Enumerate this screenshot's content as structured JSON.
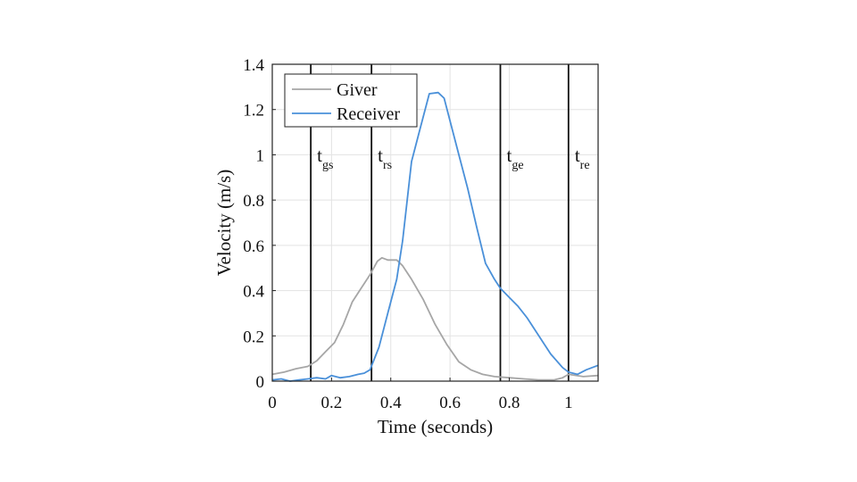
{
  "chart_data": {
    "type": "line",
    "title": "",
    "xlabel": "Time (seconds)",
    "ylabel": "Velocity (m/s)",
    "xlim": [
      0,
      1.1
    ],
    "ylim": [
      0,
      1.4
    ],
    "xticks": [
      0,
      0.2,
      0.4,
      0.6,
      0.8,
      1
    ],
    "xtick_labels": [
      "0",
      "0.2",
      "0.4",
      "0.6",
      "0.8",
      "1"
    ],
    "yticks": [
      0,
      0.2,
      0.4,
      0.6,
      0.8,
      1,
      1.2,
      1.4
    ],
    "ytick_labels": [
      "0",
      "0.2",
      "0.4",
      "0.6",
      "0.8",
      "1",
      "1.2",
      "1.4"
    ],
    "grid": true,
    "legend_position": "top-left",
    "series": [
      {
        "name": "Giver",
        "color": "#a6a6a6",
        "x": [
          0,
          0.04,
          0.08,
          0.12,
          0.15,
          0.18,
          0.21,
          0.24,
          0.27,
          0.3,
          0.33,
          0.355,
          0.37,
          0.39,
          0.42,
          0.44,
          0.47,
          0.51,
          0.55,
          0.59,
          0.63,
          0.67,
          0.71,
          0.75,
          0.8,
          0.85,
          0.9,
          0.95,
          0.98,
          1.0,
          1.05,
          1.1
        ],
        "y": [
          0.03,
          0.04,
          0.055,
          0.065,
          0.09,
          0.13,
          0.17,
          0.25,
          0.35,
          0.41,
          0.47,
          0.53,
          0.545,
          0.535,
          0.535,
          0.51,
          0.45,
          0.36,
          0.25,
          0.16,
          0.085,
          0.05,
          0.03,
          0.02,
          0.015,
          0.01,
          0.005,
          0.005,
          0.015,
          0.03,
          0.02,
          0.025
        ]
      },
      {
        "name": "Receiver",
        "color": "#4a90d9",
        "x": [
          0,
          0.03,
          0.06,
          0.09,
          0.12,
          0.15,
          0.18,
          0.2,
          0.23,
          0.26,
          0.29,
          0.31,
          0.33,
          0.36,
          0.39,
          0.42,
          0.44,
          0.47,
          0.5,
          0.53,
          0.56,
          0.58,
          0.6,
          0.63,
          0.66,
          0.69,
          0.72,
          0.75,
          0.77,
          0.8,
          0.83,
          0.86,
          0.9,
          0.94,
          0.98,
          1.0,
          1.03,
          1.06,
          1.1
        ],
        "y": [
          0.005,
          0.01,
          0.0,
          0.005,
          0.01,
          0.015,
          0.01,
          0.025,
          0.015,
          0.02,
          0.03,
          0.035,
          0.05,
          0.15,
          0.3,
          0.45,
          0.62,
          0.97,
          1.12,
          1.27,
          1.275,
          1.25,
          1.15,
          1.0,
          0.85,
          0.68,
          0.52,
          0.45,
          0.41,
          0.37,
          0.33,
          0.28,
          0.2,
          0.12,
          0.06,
          0.04,
          0.03,
          0.05,
          0.07
        ]
      }
    ],
    "vertical_lines": [
      {
        "x": 0.13,
        "label": "t",
        "sub": "gs"
      },
      {
        "x": 0.335,
        "label": "t",
        "sub": "rs"
      },
      {
        "x": 0.77,
        "label": "t",
        "sub": "ge"
      },
      {
        "x": 1.0,
        "label": "t",
        "sub": "re"
      }
    ]
  }
}
